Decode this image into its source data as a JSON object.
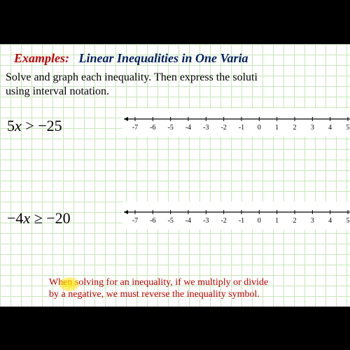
{
  "title": {
    "examples_label": "Examples:",
    "text": "Linear Inequalities in One Varia"
  },
  "instruction": {
    "line1": "Solve and graph each inequality. Then express the soluti",
    "line2": "using interval notation."
  },
  "problems": {
    "p1": {
      "lhs_coef": "5",
      "lhs_var": "x",
      "op": ">",
      "rhs": "−25"
    },
    "p2": {
      "lhs_coef": "−4",
      "lhs_var": "x",
      "op": "≥",
      "rhs": "−20"
    }
  },
  "numberline": {
    "ticks": [
      "-7",
      "-6",
      "-5",
      "-4",
      "-3",
      "-2",
      "-1",
      "0",
      "1",
      "2",
      "3",
      "4",
      "5"
    ],
    "background": "#ffffff",
    "axis_color": "#000000"
  },
  "footnote": {
    "line1": "When solving for an inequality, if we multiply or divide",
    "line2": "by a negative, we must reverse the inequality symbol."
  },
  "colors": {
    "examples": "#c00000",
    "title": "#002060",
    "text": "#000000",
    "footnote": "#c00000",
    "grid": "#c8e6b8",
    "highlight": "#ffe600"
  }
}
